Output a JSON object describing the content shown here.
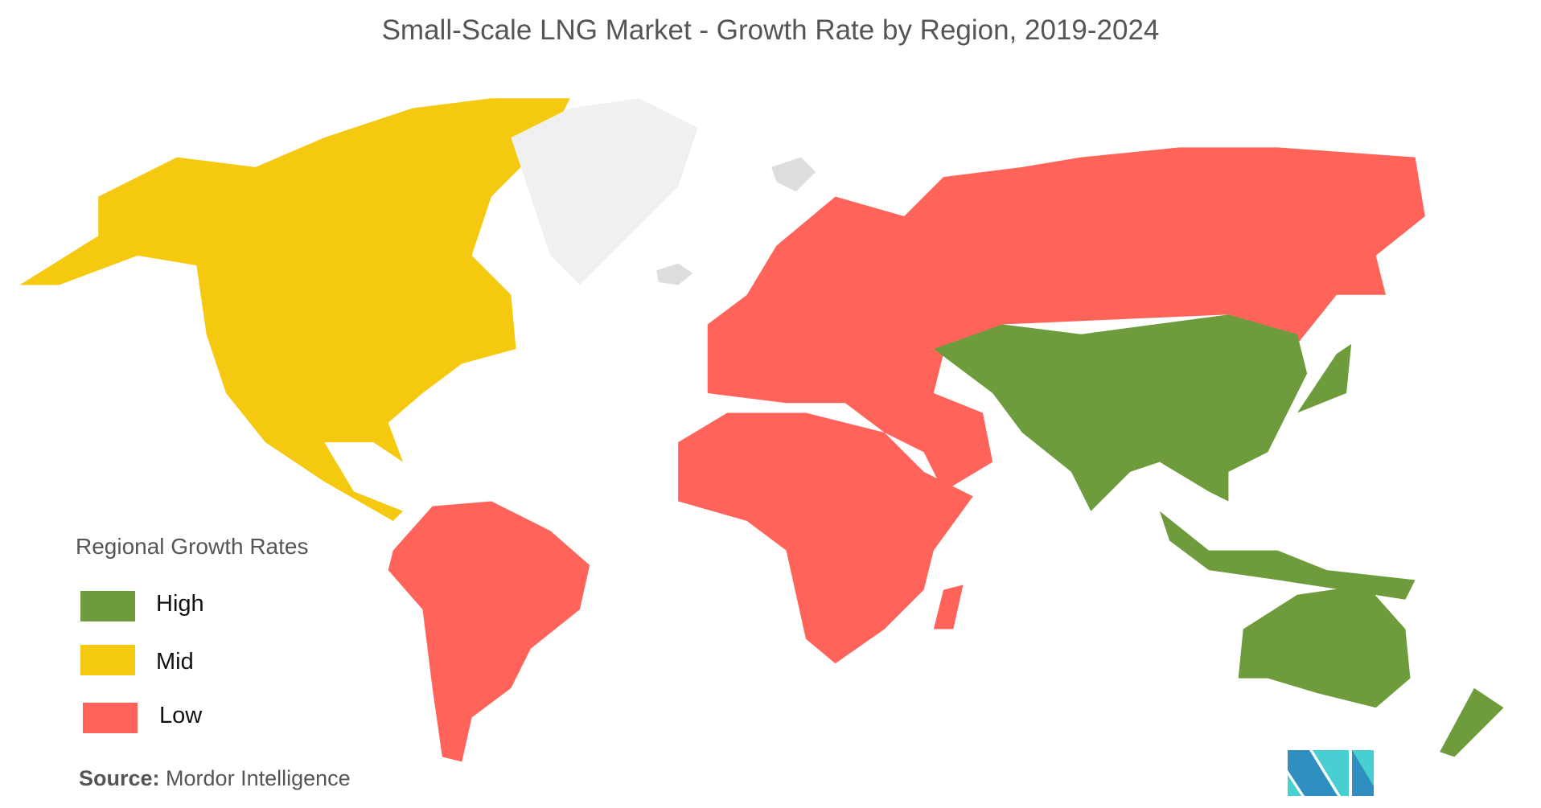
{
  "title": "Small-Scale LNG Market - Growth Rate by Region, 2019-2024",
  "legend": {
    "title": "Regional Growth Rates",
    "items": [
      {
        "label": "High",
        "color": "#6e9c3c"
      },
      {
        "label": "Mid",
        "color": "#f5c90f"
      },
      {
        "label": "Low",
        "color": "#ff635a"
      }
    ]
  },
  "no_data_color": "#f0f0f0",
  "regions": [
    {
      "name": "North America",
      "rate": "Mid"
    },
    {
      "name": "South America",
      "rate": "Low"
    },
    {
      "name": "Europe",
      "rate": "Low"
    },
    {
      "name": "Middle East and Africa",
      "rate": "Low"
    },
    {
      "name": "Asia-Pacific",
      "rate": "High"
    }
  ],
  "source": {
    "label": "Source:",
    "value": "Mordor Intelligence"
  },
  "logo": {
    "text": "MI",
    "colors": [
      "#2e8fc0",
      "#48cfd1"
    ]
  }
}
